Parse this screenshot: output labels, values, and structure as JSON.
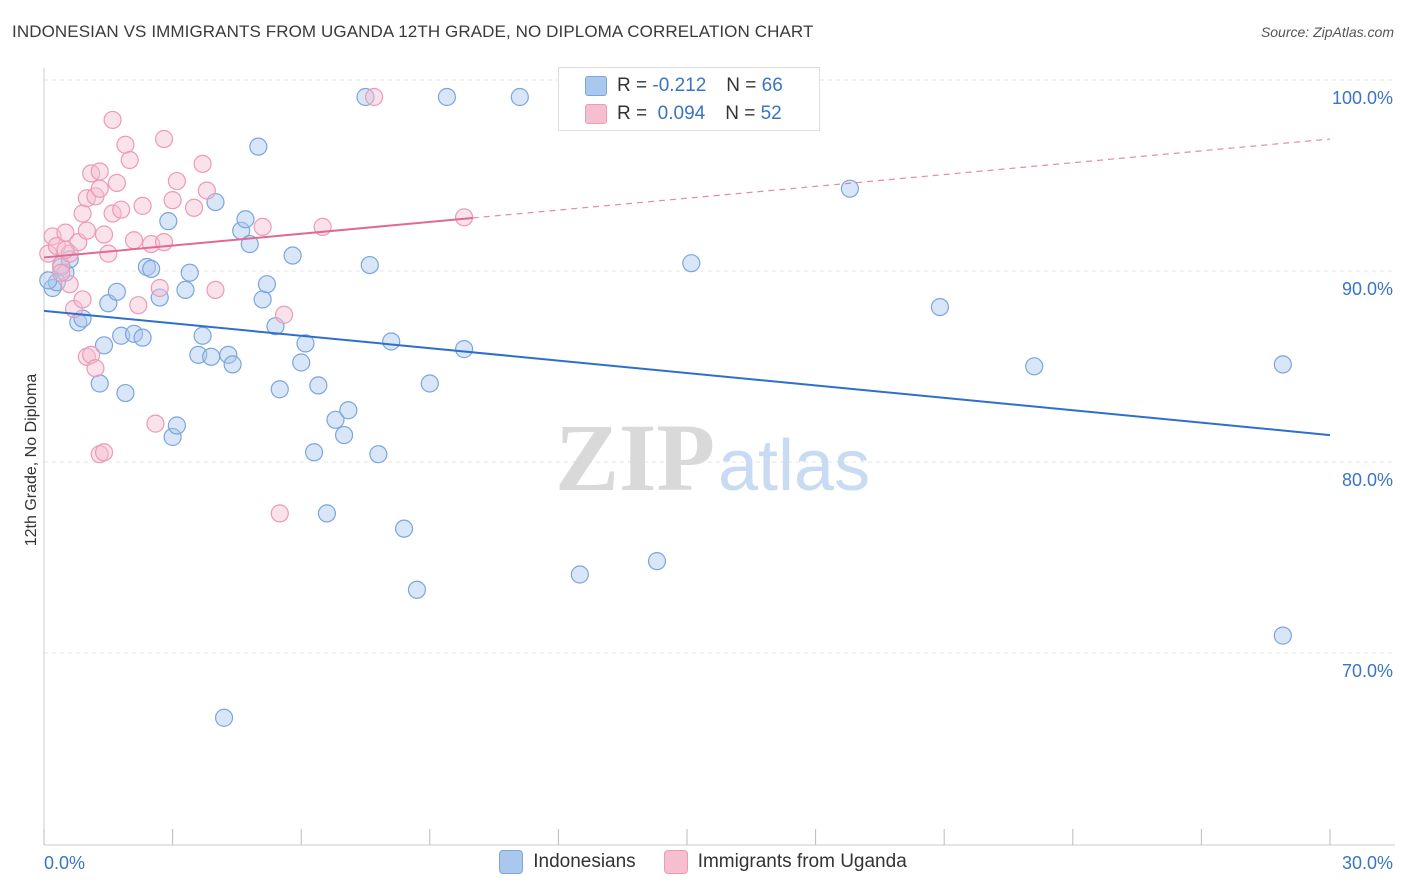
{
  "header": {
    "title": "INDONESIAN VS IMMIGRANTS FROM UGANDA 12TH GRADE, NO DIPLOMA CORRELATION CHART",
    "source": "Source: ZipAtlas.com"
  },
  "stats": [
    {
      "r_label": "R =",
      "r_value": "-0.212",
      "n_label": "N =",
      "n_value": "66"
    },
    {
      "r_label": "R =",
      "r_value": " 0.094",
      "n_label": "N =",
      "n_value": "52"
    }
  ],
  "colors": {
    "blue_fill": "#aac8ee",
    "blue_stroke": "#7aa6dd",
    "blue_line": "#2f6fcc",
    "pink_fill": "#f5bfd0",
    "pink_stroke": "#ec9ab5",
    "pink_line": "#e06a93",
    "tick_label": "#3a74c4",
    "grid": "#e4e4e4"
  },
  "chart_data": {
    "type": "scatter",
    "xlabel": "",
    "ylabel": "12th Grade, No Diploma",
    "xlim": [
      0,
      30
    ],
    "ylim": [
      60,
      104
    ],
    "x_tick_labels": {
      "left": "0.0%",
      "right": "30.0%"
    },
    "y_ticks": [
      {
        "value": 100,
        "label": "100.0%"
      },
      {
        "value": 90,
        "label": "90.0%"
      },
      {
        "value": 80,
        "label": "80.0%"
      },
      {
        "value": 70,
        "label": "70.0%"
      }
    ],
    "watermark": {
      "zip": "ZIP",
      "atlas": "atlas"
    },
    "legend_position": "bottom-center",
    "series": [
      {
        "name": "Indonesians",
        "trend": {
          "x0": 0,
          "y0": 88.8,
          "x1": 30,
          "y1": 82.3,
          "dashed_from": null
        },
        "points": [
          [
            0.2,
            90.0
          ],
          [
            0.3,
            90.3
          ],
          [
            0.4,
            91.1
          ],
          [
            0.5,
            90.8
          ],
          [
            0.6,
            91.5
          ],
          [
            0.8,
            88.2
          ],
          [
            0.9,
            88.4
          ],
          [
            1.3,
            85.0
          ],
          [
            1.4,
            87.0
          ],
          [
            1.5,
            89.2
          ],
          [
            1.7,
            89.8
          ],
          [
            1.8,
            87.5
          ],
          [
            1.9,
            84.5
          ],
          [
            2.1,
            87.6
          ],
          [
            2.3,
            87.4
          ],
          [
            2.4,
            91.1
          ],
          [
            2.5,
            91.0
          ],
          [
            2.7,
            89.5
          ],
          [
            2.9,
            93.5
          ],
          [
            3.0,
            82.2
          ],
          [
            3.1,
            82.8
          ],
          [
            3.3,
            89.9
          ],
          [
            3.4,
            90.8
          ],
          [
            3.6,
            86.5
          ],
          [
            3.7,
            87.5
          ],
          [
            3.9,
            86.4
          ],
          [
            4.0,
            94.5
          ],
          [
            4.2,
            67.5
          ],
          [
            4.3,
            86.5
          ],
          [
            4.4,
            86.0
          ],
          [
            4.6,
            93.0
          ],
          [
            4.7,
            93.6
          ],
          [
            4.8,
            92.3
          ],
          [
            5.0,
            97.4
          ],
          [
            5.1,
            89.4
          ],
          [
            5.2,
            90.2
          ],
          [
            5.4,
            88.0
          ],
          [
            5.5,
            84.7
          ],
          [
            5.8,
            91.7
          ],
          [
            6.0,
            86.1
          ],
          [
            6.1,
            87.1
          ],
          [
            6.3,
            81.4
          ],
          [
            6.4,
            84.9
          ],
          [
            6.8,
            83.1
          ],
          [
            7.0,
            82.3
          ],
          [
            7.1,
            83.6
          ],
          [
            7.6,
            91.2
          ],
          [
            7.8,
            81.3
          ],
          [
            8.1,
            87.2
          ],
          [
            8.4,
            77.4
          ],
          [
            8.7,
            74.2
          ],
          [
            9.0,
            85.0
          ],
          [
            9.8,
            86.8
          ],
          [
            11.1,
            100.0
          ],
          [
            12.5,
            75.0
          ],
          [
            14.3,
            75.7
          ],
          [
            15.1,
            91.3
          ],
          [
            6.6,
            78.2
          ],
          [
            7.5,
            100.0
          ],
          [
            18.8,
            95.2
          ],
          [
            20.9,
            89.0
          ],
          [
            23.1,
            85.9
          ],
          [
            28.9,
            86.0
          ],
          [
            28.9,
            71.8
          ],
          [
            0.1,
            90.4
          ],
          [
            9.4,
            100.0
          ]
        ]
      },
      {
        "name": "Immigrants from Uganda",
        "trend": {
          "x0": 0,
          "y0": 91.6,
          "x1": 30,
          "y1": 97.8,
          "dashed_from": 10.0
        },
        "points": [
          [
            0.1,
            91.8
          ],
          [
            0.2,
            92.7
          ],
          [
            0.3,
            92.2
          ],
          [
            0.4,
            91.2
          ],
          [
            0.5,
            92.9
          ],
          [
            0.6,
            91.8
          ],
          [
            0.7,
            88.9
          ],
          [
            0.8,
            92.4
          ],
          [
            0.9,
            93.9
          ],
          [
            1.0,
            94.7
          ],
          [
            1.1,
            96.0
          ],
          [
            1.2,
            94.8
          ],
          [
            1.3,
            96.1
          ],
          [
            1.4,
            92.8
          ],
          [
            1.5,
            91.8
          ],
          [
            1.6,
            93.9
          ],
          [
            1.7,
            95.5
          ],
          [
            1.8,
            94.1
          ],
          [
            1.9,
            97.5
          ],
          [
            2.0,
            96.7
          ],
          [
            2.1,
            92.5
          ],
          [
            2.2,
            89.1
          ],
          [
            2.3,
            94.3
          ],
          [
            2.5,
            92.3
          ],
          [
            2.6,
            82.9
          ],
          [
            2.7,
            90.0
          ],
          [
            2.8,
            97.8
          ],
          [
            3.0,
            94.6
          ],
          [
            3.1,
            95.6
          ],
          [
            3.5,
            94.2
          ],
          [
            3.7,
            96.5
          ],
          [
            3.8,
            95.1
          ],
          [
            4.0,
            89.9
          ],
          [
            1.0,
            86.4
          ],
          [
            1.1,
            86.5
          ],
          [
            1.2,
            85.8
          ],
          [
            1.3,
            81.3
          ],
          [
            1.4,
            81.4
          ],
          [
            5.1,
            93.2
          ],
          [
            5.5,
            78.2
          ],
          [
            5.6,
            88.6
          ],
          [
            6.5,
            93.2
          ],
          [
            7.7,
            100.0
          ],
          [
            9.8,
            93.7
          ],
          [
            0.6,
            90.2
          ],
          [
            0.9,
            89.4
          ],
          [
            1.0,
            93.0
          ],
          [
            1.3,
            95.2
          ],
          [
            1.6,
            98.8
          ],
          [
            2.8,
            92.4
          ],
          [
            0.4,
            90.8
          ],
          [
            0.5,
            92.0
          ]
        ]
      }
    ]
  }
}
